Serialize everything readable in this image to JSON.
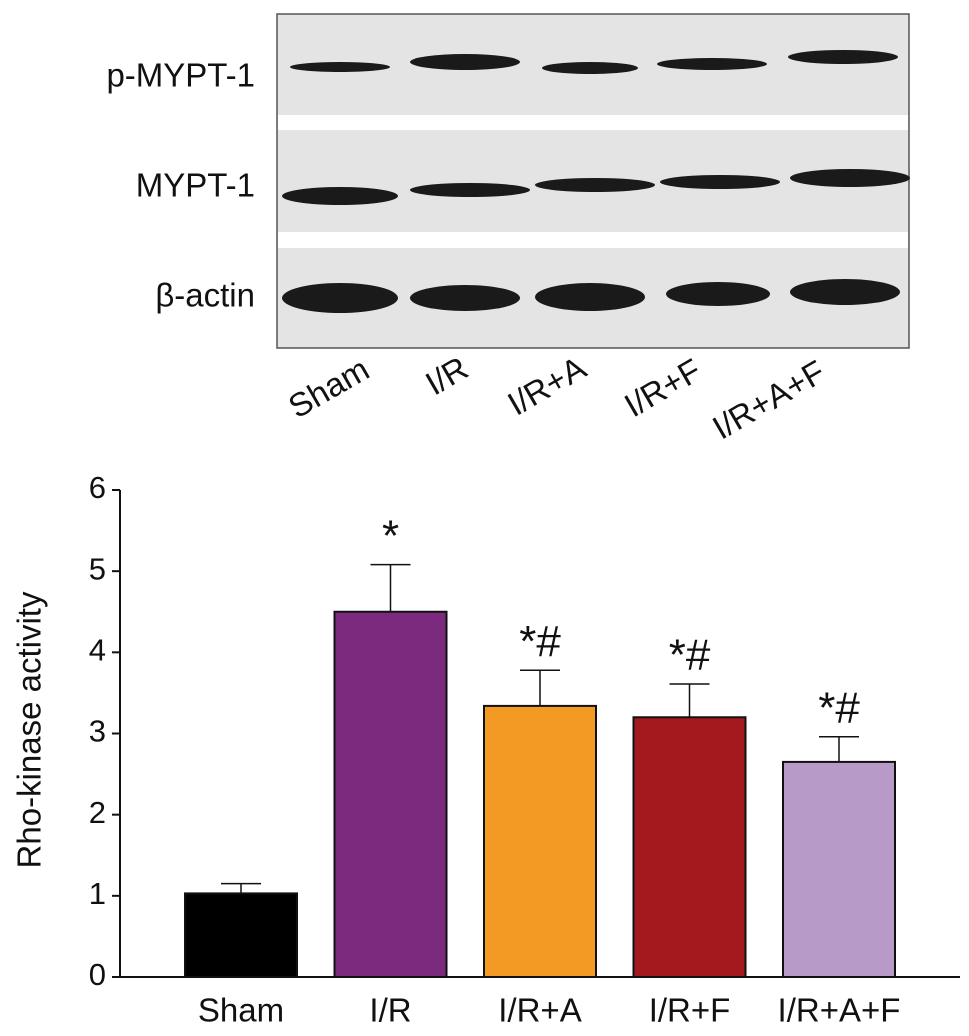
{
  "blot": {
    "rows": [
      "p-MYPT-1",
      "MYPT-1",
      "β-actin"
    ],
    "lanes": [
      "Sham",
      "I/R",
      "I/R+A",
      "I/R+F",
      "I/R+A+F"
    ]
  },
  "chart_data": {
    "type": "bar",
    "y_label": "Rho-kinase activity",
    "categories": [
      "Sham",
      "I/R",
      "I/R+A",
      "I/R+F",
      "I/R+A+F"
    ],
    "values": [
      1.03,
      4.5,
      3.34,
      3.2,
      2.65
    ],
    "errors": [
      0.12,
      0.58,
      0.44,
      0.41,
      0.31
    ],
    "annotations": [
      null,
      "*",
      "*#",
      "*#",
      "*#"
    ],
    "colors": [
      "#000000",
      "#7b2a7e",
      "#f39a24",
      "#a3191e",
      "#b79ac8"
    ],
    "ylim": [
      0,
      6
    ],
    "yticks": [
      0,
      1,
      2,
      3,
      4,
      5,
      6
    ],
    "grid": false
  }
}
